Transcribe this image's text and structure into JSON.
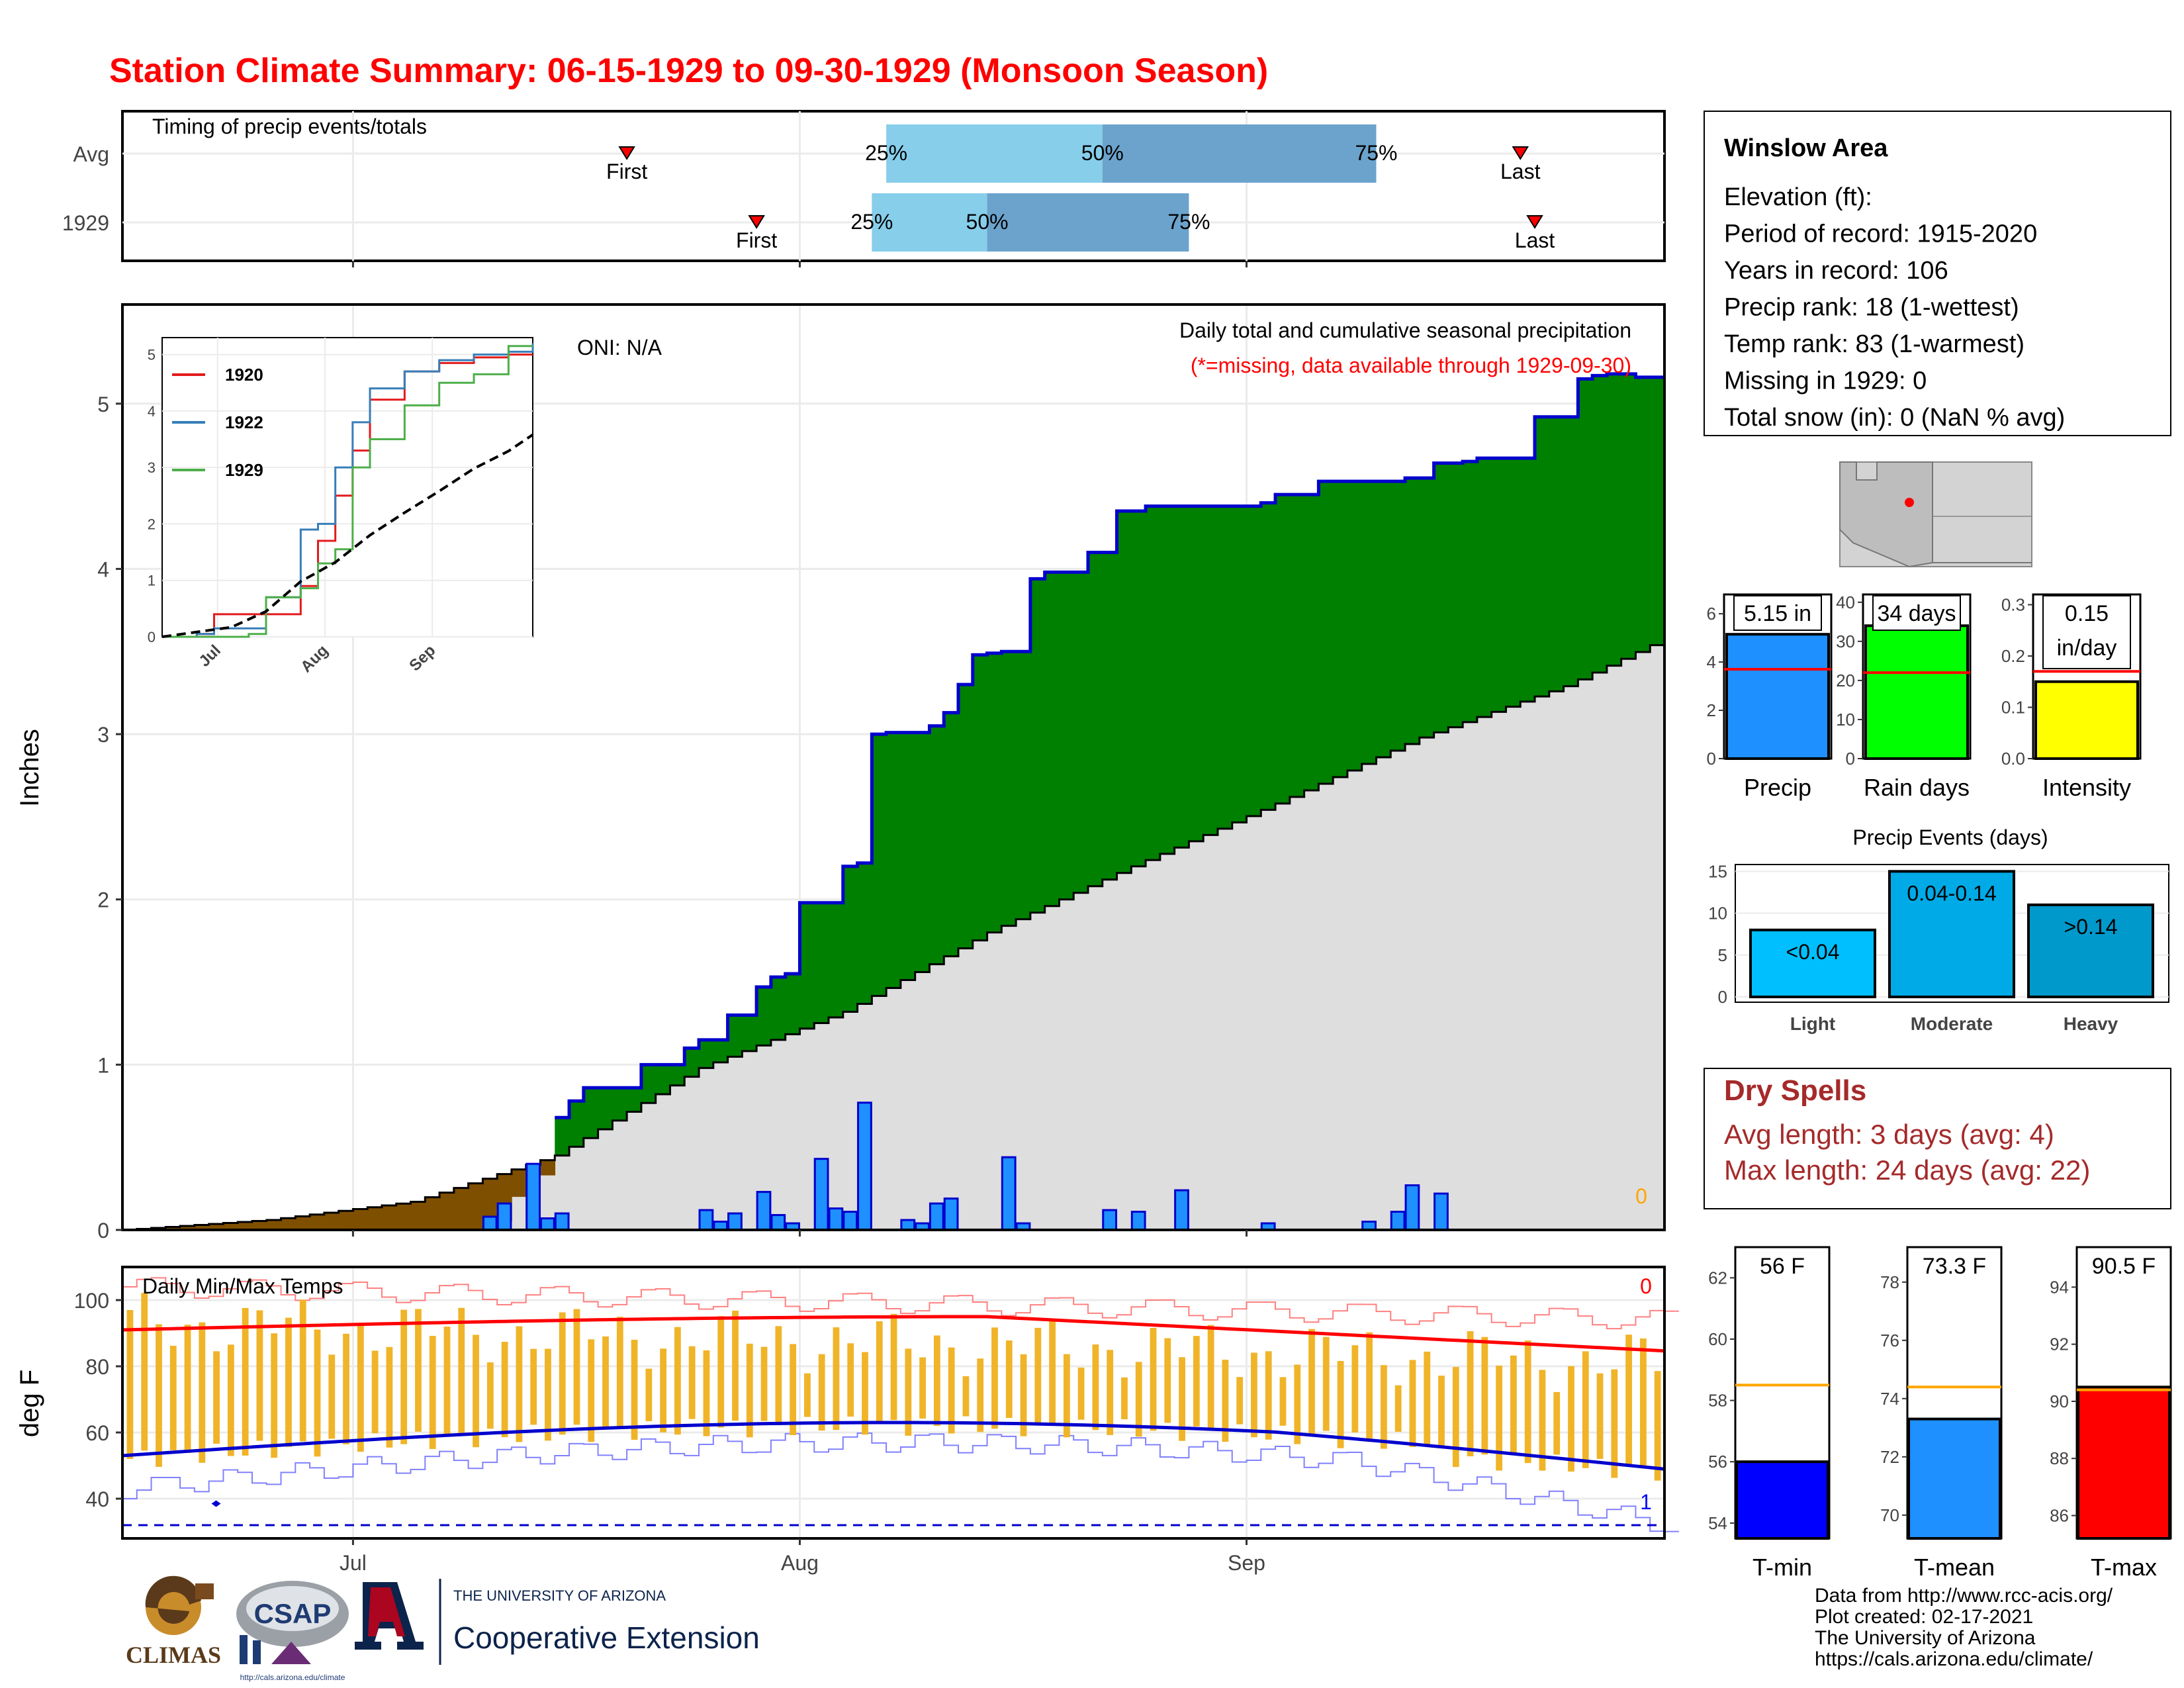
{
  "title": "Station Climate Summary: 06-15-1929 to 09-30-1929 (Monsoon Season)",
  "timing": {
    "label": "Timing of precip events/totals",
    "rows": [
      {
        "name": "Avg",
        "first_day": 35,
        "q25_day": 53,
        "q50_day": 68,
        "q75_day": 87,
        "last_day": 97
      },
      {
        "name": "1929",
        "first_day": 44,
        "q25_day": 52,
        "q50_day": 60,
        "q75_day": 74,
        "last_day": 98
      }
    ],
    "first_label": "First",
    "last_label": "Last",
    "q_labels": [
      "25%",
      "50%",
      "75%"
    ]
  },
  "month_labels": [
    "Jul",
    "Aug",
    "Sep"
  ],
  "precip_panel": {
    "ylabel": "Inches",
    "note_main": "Daily total and cumulative seasonal precipitation",
    "note_missing": "(*=missing, data available through 1929-09-30)",
    "oni": "ONI: N/A",
    "missing_count": "0",
    "yticks": [
      "0",
      "1",
      "2",
      "3",
      "4",
      "5"
    ]
  },
  "chart_data": [
    {
      "type": "area",
      "title": "Daily total and cumulative seasonal precipitation",
      "ylabel": "Inches",
      "xlabel": "",
      "x_range": [
        "1929-06-15",
        "1929-09-30"
      ],
      "ylim": [
        0,
        5.6
      ],
      "series": [
        {
          "name": "cumulative",
          "x_day": [
            26,
            27,
            28,
            30,
            31,
            32,
            36,
            39,
            40,
            42,
            44,
            45,
            46,
            47,
            50,
            51,
            52,
            53,
            56,
            57,
            58,
            59,
            60,
            61,
            63,
            64,
            67,
            69,
            71,
            79,
            80,
            83,
            89,
            91,
            93,
            94,
            98,
            101,
            102,
            103,
            105
          ],
          "y": [
            0.05,
            0.2,
            0.33,
            0.68,
            0.78,
            0.86,
            1.0,
            1.1,
            1.15,
            1.3,
            1.47,
            1.53,
            1.55,
            1.98,
            2.2,
            2.22,
            3.0,
            3.01,
            3.05,
            3.13,
            3.3,
            3.48,
            3.49,
            3.5,
            3.94,
            3.98,
            4.1,
            4.35,
            4.38,
            4.4,
            4.45,
            4.53,
            4.55,
            4.64,
            4.65,
            4.67,
            4.92,
            5.15,
            5.17,
            5.18,
            5.16
          ]
        },
        {
          "name": "average cumulative",
          "x_day": [
            0,
            10,
            20,
            30,
            40,
            50,
            60,
            70,
            80,
            90,
            100,
            107
          ],
          "y": [
            0.0,
            0.06,
            0.17,
            0.45,
            0.98,
            1.32,
            1.8,
            2.2,
            2.58,
            2.98,
            3.29,
            3.58
          ]
        },
        {
          "name": "daily",
          "x_day": [
            25,
            26,
            28,
            29,
            30,
            40,
            41,
            42,
            44,
            45,
            46,
            48,
            49,
            50,
            51,
            54,
            55,
            56,
            57,
            61,
            62,
            68,
            70,
            73,
            79,
            86,
            88,
            89,
            91,
            102,
            104
          ],
          "y": [
            0.08,
            0.16,
            0.4,
            0.07,
            0.1,
            0.12,
            0.05,
            0.1,
            0.23,
            0.09,
            0.04,
            0.43,
            0.13,
            0.11,
            0.77,
            0.06,
            0.04,
            0.16,
            0.19,
            0.44,
            0.04,
            0.12,
            0.11,
            0.24,
            0.04,
            0.05,
            0.11,
            0.27,
            0.22,
            0.0,
            0.0
          ]
        }
      ]
    },
    {
      "type": "line",
      "title": "",
      "xlabel": "",
      "ylabel": "",
      "x_ticks": [
        "Jul",
        "Aug",
        "Sep"
      ],
      "ylim": [
        0,
        5.3
      ],
      "series": [
        {
          "name": "1920",
          "color": "#e41a1c",
          "x_day": [
            0,
            10,
            15,
            30,
            40,
            45,
            50,
            55,
            60,
            70,
            80,
            90,
            100,
            107
          ],
          "y": [
            0.0,
            0.05,
            0.4,
            0.4,
            0.9,
            1.7,
            2.5,
            3.3,
            4.2,
            4.7,
            4.85,
            4.95,
            5.0,
            5.0
          ]
        },
        {
          "name": "1922",
          "color": "#377eb8",
          "x_day": [
            0,
            10,
            15,
            30,
            40,
            45,
            50,
            55,
            60,
            70,
            80,
            90,
            100,
            107
          ],
          "y": [
            0.0,
            0.05,
            0.15,
            0.7,
            1.9,
            2.0,
            3.0,
            3.8,
            4.4,
            4.7,
            4.9,
            5.0,
            5.05,
            5.2
          ]
        },
        {
          "name": "1929",
          "color": "#4daf4a",
          "x_day": [
            0,
            25,
            30,
            40,
            45,
            50,
            55,
            60,
            70,
            80,
            90,
            100,
            107
          ],
          "y": [
            0.0,
            0.05,
            0.7,
            0.86,
            1.3,
            1.55,
            3.0,
            3.5,
            4.1,
            4.5,
            4.65,
            5.15,
            5.15
          ]
        },
        {
          "name": "average",
          "color": "#000000",
          "x_day": [
            0,
            20,
            30,
            40,
            50,
            60,
            70,
            80,
            90,
            100,
            107
          ],
          "y": [
            0.0,
            0.17,
            0.45,
            0.98,
            1.32,
            1.8,
            2.2,
            2.58,
            2.98,
            3.29,
            3.58
          ]
        }
      ]
    },
    {
      "type": "bar",
      "title": "",
      "categories": [
        "Precip",
        "Rain days",
        "Intensity"
      ],
      "values": [
        5.15,
        34,
        0.15
      ],
      "averages": [
        3.7,
        22,
        0.17
      ],
      "labels": [
        "5.15 in",
        "34 days",
        "0.15\nin/day"
      ],
      "ylims": [
        [
          0,
          6.8
        ],
        [
          0,
          42
        ],
        [
          0,
          0.32
        ]
      ],
      "colors": [
        "#1e90ff",
        "#00ff00",
        "#ffff00"
      ]
    },
    {
      "type": "bar",
      "title": "Precip Events (days)",
      "categories": [
        "Light",
        "Moderate",
        "Heavy"
      ],
      "values": [
        8,
        15,
        11
      ],
      "bar_labels": [
        "<0.04",
        "0.04-0.14",
        ">0.14"
      ],
      "ylim": [
        0,
        15.5
      ],
      "colors": [
        "#00bfff",
        "#00aae6",
        "#0099cc"
      ]
    },
    {
      "type": "bar",
      "title": "Daily Min/Max Temps",
      "ylabel": "deg F",
      "ylim": [
        28,
        110
      ],
      "x_day_range": [
        0,
        107
      ]
    },
    {
      "type": "bar",
      "title": "",
      "categories": [
        "T-min",
        "T-mean",
        "T-max"
      ],
      "values": [
        56,
        73.3,
        90.5
      ],
      "averages": [
        58.5,
        74.4,
        90.4
      ],
      "labels": [
        "56 F",
        "73.3 F",
        "90.5 F"
      ],
      "ylims": [
        [
          53.5,
          63
        ],
        [
          69.2,
          79.2
        ],
        [
          85.2,
          95.4
        ]
      ],
      "colors": [
        "#0000ff",
        "#1e90ff",
        "#ff0000"
      ]
    }
  ],
  "info_box": {
    "title": "Winslow Area",
    "lines": [
      "Elevation (ft):",
      "Period of record: 1915-2020",
      "Years in record: 106",
      "Precip rank: 18 (1-wettest)",
      "Temp rank: 83 (1-warmest)",
      "Missing in 1929: 0",
      "Total snow (in): 0 (NaN % avg)"
    ]
  },
  "dry_spells": {
    "title": "Dry Spells",
    "avg": "Avg length: 3 days (avg: 4)",
    "max": "Max length: 24 days (avg: 22)"
  },
  "temp_panel": {
    "ylabel": "deg F",
    "title": "Daily Min/Max Temps",
    "missing_hi": "0",
    "missing_lo": "1",
    "yticks": [
      "40",
      "60",
      "80",
      "100"
    ]
  },
  "credits": [
    "Data from http://www.rcc-acis.org/",
    "Plot created: 02-17-2021",
    "The University of Arizona",
    "https://cals.arizona.edu/climate/"
  ],
  "logos": {
    "climas": "CLIMAS",
    "csap": "CSAP",
    "csap_url": "http://cals.arizona.edu/climate",
    "ua_small": "THE UNIVERSITY OF ARIZONA",
    "ua_big": "Cooperative Extension"
  },
  "colors": {
    "title": "#ff0000",
    "cumulative_above": "#008000",
    "cumulative_below": "#7f4f00",
    "avg_fill": "#dedede",
    "daily_bar": "#1e90ff",
    "temp_bar": "#f0b429",
    "dry_spells": "#a52a2a"
  }
}
